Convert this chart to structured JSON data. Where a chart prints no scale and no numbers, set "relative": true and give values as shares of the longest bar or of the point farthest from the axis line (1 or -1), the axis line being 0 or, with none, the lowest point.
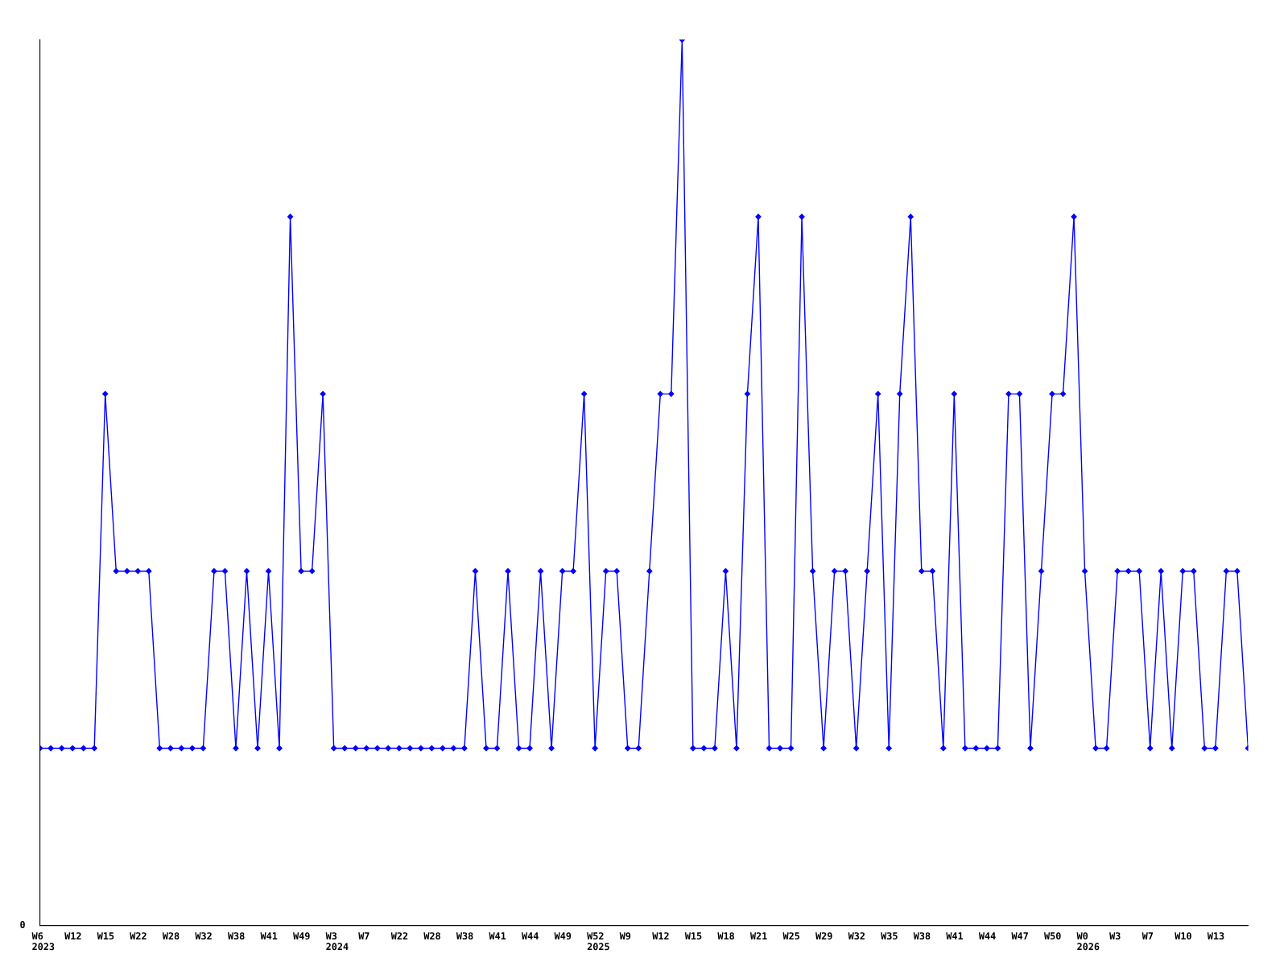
{
  "chart_data": {
    "type": "line",
    "relative": true,
    "marker": "diamond",
    "line_style": "solid",
    "grid": false,
    "legend": false,
    "annotations": [
      "0"
    ],
    "categories": [
      "W6\n2023",
      null,
      null,
      "W12",
      null,
      null,
      "W15",
      null,
      null,
      "W22",
      null,
      null,
      "W28",
      null,
      null,
      "W32",
      null,
      null,
      "W38",
      null,
      null,
      "W41",
      null,
      null,
      "W49",
      null,
      null,
      "W3\n2024",
      null,
      null,
      "W7",
      null,
      null,
      "W22",
      null,
      null,
      "W28",
      null,
      null,
      "W38",
      null,
      null,
      "W41",
      null,
      null,
      "W44",
      null,
      null,
      "W49",
      null,
      null,
      "W52\n2025",
      null,
      null,
      "W9",
      null,
      null,
      "W12",
      null,
      null,
      "W15",
      null,
      null,
      "W18",
      null,
      null,
      "W21",
      null,
      null,
      "W25",
      null,
      null,
      "W29",
      null,
      null,
      "W32",
      null,
      null,
      "W35",
      null,
      null,
      "W38",
      null,
      null,
      "W41",
      null,
      null,
      "W44",
      null,
      null,
      "W47",
      null,
      null,
      "W50",
      null,
      null,
      "W0\n2026",
      null,
      null,
      "W3",
      null,
      null,
      "W7",
      null,
      null,
      "W10",
      null,
      null,
      "W13",
      null,
      null,
      null
    ],
    "series": [
      {
        "color": "#0000ff",
        "values": [
          0.2,
          0.2,
          0.2,
          0.2,
          0.2,
          0.2,
          0.6,
          0.4,
          0.4,
          0.4,
          0.4,
          0.2,
          0.2,
          0.2,
          0.2,
          0.2,
          0.4,
          0.4,
          0.2,
          0.4,
          0.2,
          0.4,
          0.2,
          0.8,
          0.4,
          0.4,
          0.6,
          0.2,
          0.2,
          0.2,
          0.2,
          0.2,
          0.2,
          0.2,
          0.2,
          0.2,
          0.2,
          0.2,
          0.2,
          0.2,
          0.4,
          0.2,
          0.2,
          0.4,
          0.2,
          0.2,
          0.4,
          0.2,
          0.4,
          0.4,
          0.6,
          0.2,
          0.4,
          0.4,
          0.2,
          0.2,
          0.4,
          0.6,
          0.6,
          1,
          0.2,
          0.2,
          0.2,
          0.4,
          0.2,
          0.6,
          0.8,
          0.2,
          0.2,
          0.2,
          0.8,
          0.4,
          0.2,
          0.4,
          0.4,
          0.2,
          0.4,
          0.6,
          0.2,
          0.6,
          0.8,
          0.4,
          0.4,
          0.2,
          0.6,
          0.2,
          0.2,
          0.2,
          0.2,
          0.6,
          0.6,
          0.2,
          0.4,
          0.6,
          0.6,
          0.8,
          0.4,
          0.2,
          0.2,
          0.4,
          0.4,
          0.4,
          0.2,
          0.4,
          0.2,
          0.4,
          0.4,
          0.2,
          0.2,
          0.4,
          0.4,
          0.2
        ]
      }
    ]
  }
}
